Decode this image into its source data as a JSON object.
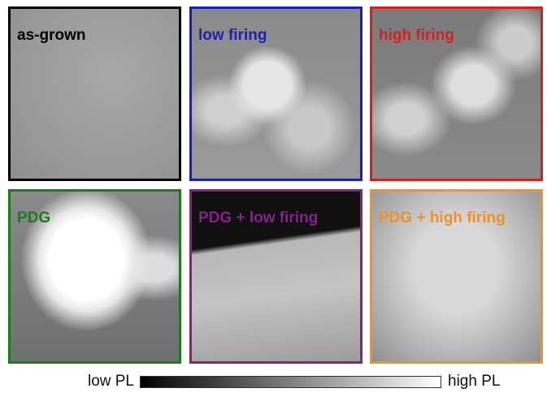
{
  "panels": [
    {
      "label": "as-grown",
      "color": "#000000"
    },
    {
      "label": "low firing",
      "color": "#1f1fb4"
    },
    {
      "label": "high firing",
      "color": "#d42020"
    },
    {
      "label": "PDG",
      "color": "#1e7a1e"
    },
    {
      "label": "PDG + low firing",
      "color": "#8a1f8a"
    },
    {
      "label": "PDG + high firing",
      "color": "#f0922a"
    }
  ],
  "colorbar": {
    "low_label": "low PL",
    "high_label": "high PL"
  }
}
